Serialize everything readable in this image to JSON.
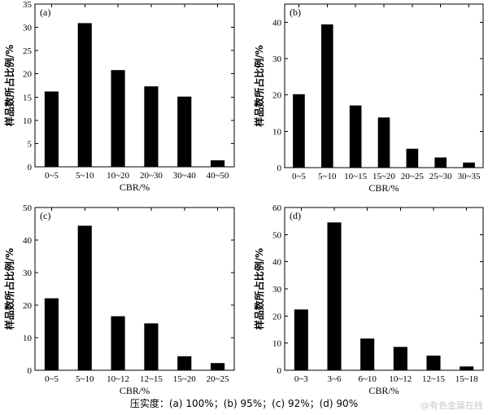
{
  "chart_data": [
    {
      "type": "bar",
      "panel": "(a)",
      "categories": [
        "0~5",
        "5~10",
        "10~20",
        "20~30",
        "30~40",
        "40~50"
      ],
      "values": [
        16.2,
        30.9,
        20.8,
        17.3,
        15.1,
        1.4
      ],
      "xlabel": "CBR/%",
      "ylabel": "样品数所占比例/%",
      "ylim": [
        0,
        35
      ],
      "yticks": [
        0,
        5,
        10,
        15,
        20,
        25,
        30,
        35
      ],
      "grid": false
    },
    {
      "type": "bar",
      "panel": "(b)",
      "categories": [
        "0~5",
        "5~10",
        "10~15",
        "15~20",
        "20~25",
        "25~30",
        "30~35"
      ],
      "values": [
        20.2,
        39.4,
        17.1,
        13.8,
        5.2,
        2.8,
        1.4
      ],
      "xlabel": "CBR/%",
      "ylabel": "样品数所占比例/%",
      "ylim": [
        0,
        45
      ],
      "yticks": [
        0,
        10,
        20,
        30,
        40
      ],
      "grid": false
    },
    {
      "type": "bar",
      "panel": "(c)",
      "categories": [
        "0~5",
        "5~10",
        "10~12",
        "12~15",
        "15~20",
        "20~25"
      ],
      "values": [
        22.1,
        44.4,
        16.6,
        14.4,
        4.3,
        2.2
      ],
      "xlabel": "CBR/%",
      "ylabel": "样品数所占比例/%",
      "ylim": [
        0,
        50
      ],
      "yticks": [
        0,
        10,
        20,
        30,
        40,
        50
      ],
      "grid": false
    },
    {
      "type": "bar",
      "panel": "(d)",
      "categories": [
        "0~3",
        "3~6",
        "6~10",
        "10~12",
        "12~15",
        "15~18"
      ],
      "values": [
        22.4,
        54.5,
        11.7,
        8.6,
        5.4,
        1.4
      ],
      "xlabel": "CBR/%",
      "ylabel": "样品数所占比例/%",
      "ylim": [
        0,
        60
      ],
      "yticks": [
        0,
        10,
        20,
        30,
        40,
        50,
        60
      ],
      "grid": false
    }
  ],
  "caption": "压实度：(a) 100%；(b) 95%；(c) 92%；(d) 90%",
  "watermark": "@有色金属在线",
  "colors": {
    "bar": "#000000",
    "axis": "#000000",
    "background": "#ffffff",
    "watermark": "#c9c9c9"
  }
}
